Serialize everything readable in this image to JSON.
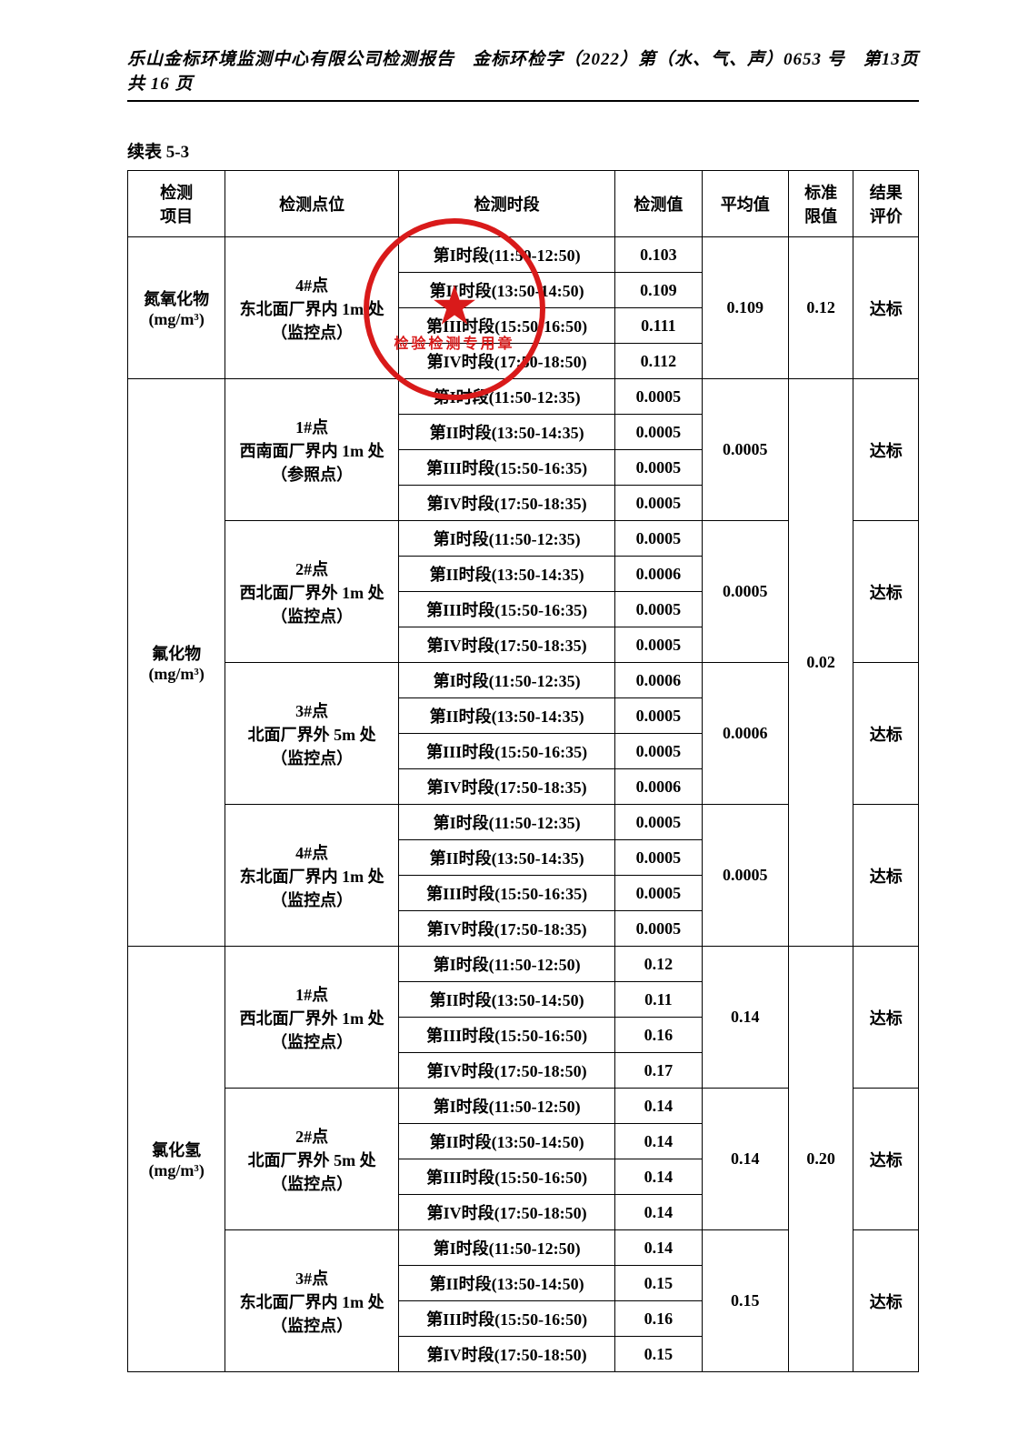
{
  "header": "乐山金标环境监测中心有限公司检测报告　金标环检字（2022）第（水、气、声）0653 号　第13页 共 16 页",
  "caption": "续表 5-3",
  "seal_text": "检验检测专用章",
  "cols": [
    "检测\n项目",
    "检测点位",
    "检测时段",
    "检测值",
    "平均值",
    "标准\n限值",
    "结果\n评价"
  ],
  "groups": [
    {
      "project": "氮氧化物\n(mg/m³)",
      "limit": "0.12",
      "locs": [
        {
          "loc": "4#点\n东北面厂界内 1m 处\n（监控点）",
          "avg": "0.109",
          "res": "达标",
          "rows": [
            [
              "第I时段(11:50-12:50)",
              "0.103"
            ],
            [
              "第II时段(13:50-14:50)",
              "0.109"
            ],
            [
              "第III时段(15:50-16:50)",
              "0.111"
            ],
            [
              "第IV时段(17:50-18:50)",
              "0.112"
            ]
          ]
        }
      ]
    },
    {
      "project": "氟化物\n(mg/m³)",
      "limit": "0.02",
      "locs": [
        {
          "loc": "1#点\n西南面厂界内 1m 处\n（参照点）",
          "avg": "0.0005",
          "res": "达标",
          "rows": [
            [
              "第I时段(11:50-12:35)",
              "0.0005"
            ],
            [
              "第II时段(13:50-14:35)",
              "0.0005"
            ],
            [
              "第III时段(15:50-16:35)",
              "0.0005"
            ],
            [
              "第IV时段(17:50-18:35)",
              "0.0005"
            ]
          ]
        },
        {
          "loc": "2#点\n西北面厂界外 1m 处\n（监控点）",
          "avg": "0.0005",
          "res": "达标",
          "rows": [
            [
              "第I时段(11:50-12:35)",
              "0.0005"
            ],
            [
              "第II时段(13:50-14:35)",
              "0.0006"
            ],
            [
              "第III时段(15:50-16:35)",
              "0.0005"
            ],
            [
              "第IV时段(17:50-18:35)",
              "0.0005"
            ]
          ]
        },
        {
          "loc": "3#点\n北面厂界外 5m 处\n（监控点）",
          "avg": "0.0006",
          "res": "达标",
          "rows": [
            [
              "第I时段(11:50-12:35)",
              "0.0006"
            ],
            [
              "第II时段(13:50-14:35)",
              "0.0005"
            ],
            [
              "第III时段(15:50-16:35)",
              "0.0005"
            ],
            [
              "第IV时段(17:50-18:35)",
              "0.0006"
            ]
          ]
        },
        {
          "loc": "4#点\n东北面厂界内 1m 处\n（监控点）",
          "avg": "0.0005",
          "res": "达标",
          "rows": [
            [
              "第I时段(11:50-12:35)",
              "0.0005"
            ],
            [
              "第II时段(13:50-14:35)",
              "0.0005"
            ],
            [
              "第III时段(15:50-16:35)",
              "0.0005"
            ],
            [
              "第IV时段(17:50-18:35)",
              "0.0005"
            ]
          ]
        }
      ]
    },
    {
      "project": "氯化氢\n(mg/m³)",
      "limit": "0.20",
      "locs": [
        {
          "loc": "1#点\n西北面厂界外 1m 处\n（监控点）",
          "avg": "0.14",
          "res": "达标",
          "rows": [
            [
              "第I时段(11:50-12:50)",
              "0.12"
            ],
            [
              "第II时段(13:50-14:50)",
              "0.11"
            ],
            [
              "第III时段(15:50-16:50)",
              "0.16"
            ],
            [
              "第IV时段(17:50-18:50)",
              "0.17"
            ]
          ]
        },
        {
          "loc": "2#点\n北面厂界外 5m 处\n（监控点）",
          "avg": "0.14",
          "res": "达标",
          "rows": [
            [
              "第I时段(11:50-12:50)",
              "0.14"
            ],
            [
              "第II时段(13:50-14:50)",
              "0.14"
            ],
            [
              "第III时段(15:50-16:50)",
              "0.14"
            ],
            [
              "第IV时段(17:50-18:50)",
              "0.14"
            ]
          ]
        },
        {
          "loc": "3#点\n东北面厂界内 1m 处\n（监控点）",
          "avg": "0.15",
          "res": "达标",
          "rows": [
            [
              "第I时段(11:50-12:50)",
              "0.14"
            ],
            [
              "第II时段(13:50-14:50)",
              "0.15"
            ],
            [
              "第III时段(15:50-16:50)",
              "0.16"
            ],
            [
              "第IV时段(17:50-18:50)",
              "0.15"
            ]
          ]
        }
      ]
    }
  ]
}
